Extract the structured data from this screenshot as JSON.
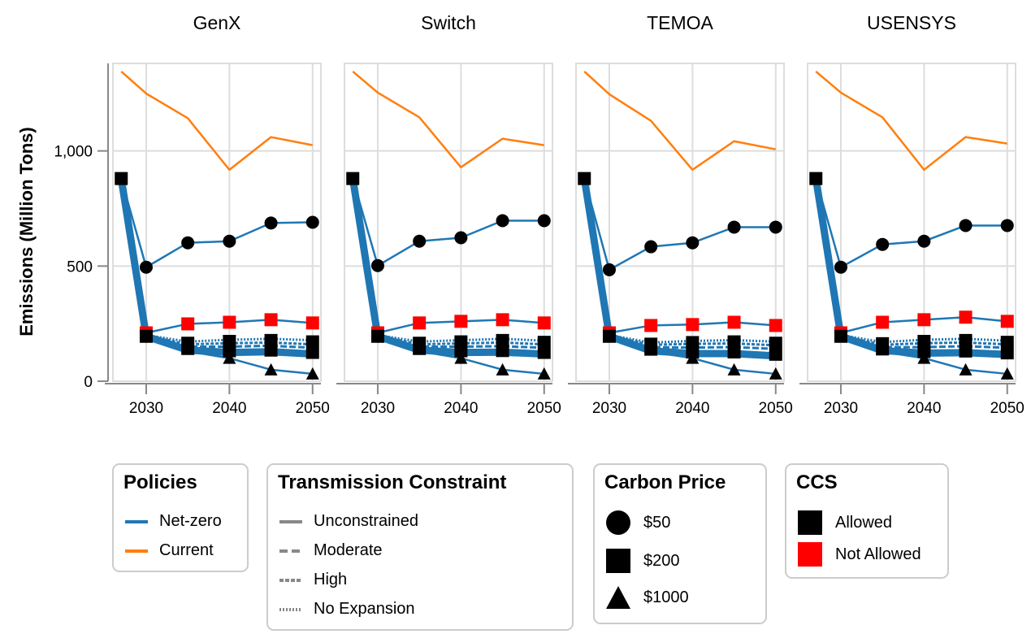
{
  "chart_data": {
    "type": "line",
    "ylabel": "Emissions (Million Tons)",
    "ylim": [
      0,
      1380
    ],
    "yticks": [
      0,
      500,
      1000
    ],
    "ytick_labels": [
      "0",
      "500",
      "1,000"
    ],
    "xlim": [
      2026,
      2051
    ],
    "xticks": [
      2030,
      2040,
      2050
    ],
    "xtick_labels": [
      "2030",
      "2040",
      "2050"
    ],
    "grid": true,
    "x": [
      2027,
      2030,
      2035,
      2040,
      2045,
      2050
    ],
    "panels": [
      {
        "title": "GenX",
        "series": [
          {
            "name": "Current policy",
            "policy": "Current",
            "values": [
              1345,
              1249,
              1142,
              918,
              1060,
              1025
            ]
          },
          {
            "name": "Net-zero $50 CCS allowed",
            "policy": "Net-zero",
            "carbon_price": "$50",
            "ccs": "Allowed",
            "transmission": "Unconstrained",
            "marker": "circle",
            "values": [
              880,
              495,
              601,
              608,
              687,
              690
            ]
          },
          {
            "name": "Net-zero $200 CCS not allowed",
            "policy": "Net-zero",
            "carbon_price": "$200",
            "ccs": "Not Allowed",
            "transmission": "Unconstrained",
            "marker": "square",
            "values": [
              880,
              210,
              249,
              256,
              267,
              253
            ]
          },
          {
            "name": "Net-zero $200 No Expansion",
            "policy": "Net-zero",
            "carbon_price": "$200",
            "ccs": "Allowed",
            "transmission": "No Expansion",
            "marker": "square",
            "values": [
              880,
              200,
              172,
              180,
              184,
              178
            ]
          },
          {
            "name": "Net-zero $200 High",
            "policy": "Net-zero",
            "carbon_price": "$200",
            "ccs": "Allowed",
            "transmission": "High",
            "marker": "square",
            "values": [
              880,
              198,
              160,
              165,
              168,
              160
            ]
          },
          {
            "name": "Net-zero $200 Moderate",
            "policy": "Net-zero",
            "carbon_price": "$200",
            "ccs": "Allowed",
            "transmission": "Moderate",
            "marker": "square",
            "values": [
              880,
              196,
              150,
              150,
              154,
              145
            ]
          },
          {
            "name": "Net-zero $200 Unconstrained",
            "policy": "Net-zero",
            "carbon_price": "$200",
            "ccs": "Allowed",
            "transmission": "Unconstrained",
            "marker": "square",
            "values": [
              880,
              195,
              135,
              125,
              128,
              118
            ]
          },
          {
            "name": "Net-zero $1000",
            "policy": "Net-zero",
            "carbon_price": "$1000",
            "ccs": "Allowed",
            "transmission": "Unconstrained",
            "marker": "triangle",
            "values": [
              880,
              195,
              130,
              100,
              50,
              32
            ]
          }
        ]
      },
      {
        "title": "Switch",
        "series": [
          {
            "name": "Current policy",
            "policy": "Current",
            "values": [
              1345,
              1253,
              1146,
              929,
              1053,
              1025
            ]
          },
          {
            "name": "Net-zero $50 CCS allowed",
            "policy": "Net-zero",
            "carbon_price": "$50",
            "ccs": "Allowed",
            "transmission": "Unconstrained",
            "marker": "circle",
            "values": [
              880,
              502,
              608,
              623,
              697,
              697
            ]
          },
          {
            "name": "Net-zero $200 CCS not allowed",
            "policy": "Net-zero",
            "carbon_price": "$200",
            "ccs": "Not Allowed",
            "transmission": "Unconstrained",
            "marker": "square",
            "values": [
              880,
              210,
              253,
              260,
              267,
              253
            ]
          },
          {
            "name": "Net-zero $200 No Expansion",
            "policy": "Net-zero",
            "carbon_price": "$200",
            "ccs": "Allowed",
            "transmission": "No Expansion",
            "marker": "square",
            "values": [
              880,
              200,
              172,
              178,
              184,
              176
            ]
          },
          {
            "name": "Net-zero $200 High",
            "policy": "Net-zero",
            "carbon_price": "$200",
            "ccs": "Allowed",
            "transmission": "High",
            "marker": "square",
            "values": [
              880,
              198,
              160,
              164,
              168,
              160
            ]
          },
          {
            "name": "Net-zero $200 Moderate",
            "policy": "Net-zero",
            "carbon_price": "$200",
            "ccs": "Allowed",
            "transmission": "Moderate",
            "marker": "square",
            "values": [
              880,
              196,
              150,
              150,
              152,
              145
            ]
          },
          {
            "name": "Net-zero $200 Unconstrained",
            "policy": "Net-zero",
            "carbon_price": "$200",
            "ccs": "Allowed",
            "transmission": "Unconstrained",
            "marker": "square",
            "values": [
              880,
              195,
              135,
              125,
              126,
              118
            ]
          },
          {
            "name": "Net-zero $1000",
            "policy": "Net-zero",
            "carbon_price": "$1000",
            "ccs": "Allowed",
            "transmission": "Unconstrained",
            "marker": "triangle",
            "values": [
              880,
              195,
              130,
              100,
              50,
              32
            ]
          }
        ]
      },
      {
        "title": "TEMOA",
        "series": [
          {
            "name": "Current policy",
            "policy": "Current",
            "values": [
              1345,
              1246,
              1131,
              918,
              1042,
              1007
            ]
          },
          {
            "name": "Net-zero $50 CCS allowed",
            "policy": "Net-zero",
            "carbon_price": "$50",
            "ccs": "Allowed",
            "transmission": "Unconstrained",
            "marker": "circle",
            "values": [
              880,
              484,
              584,
              601,
              669,
              669
            ]
          },
          {
            "name": "Net-zero $200 CCS not allowed",
            "policy": "Net-zero",
            "carbon_price": "$200",
            "ccs": "Not Allowed",
            "transmission": "Unconstrained",
            "marker": "square",
            "values": [
              880,
              210,
              242,
              246,
              256,
              242
            ]
          },
          {
            "name": "Net-zero $200 No Expansion",
            "policy": "Net-zero",
            "carbon_price": "$200",
            "ccs": "Allowed",
            "transmission": "No Expansion",
            "marker": "square",
            "values": [
              880,
              200,
              168,
              175,
              178,
              172
            ]
          },
          {
            "name": "Net-zero $200 High",
            "policy": "Net-zero",
            "carbon_price": "$200",
            "ccs": "Allowed",
            "transmission": "High",
            "marker": "square",
            "values": [
              880,
              198,
              158,
              162,
              164,
              156
            ]
          },
          {
            "name": "Net-zero $200 Moderate",
            "policy": "Net-zero",
            "carbon_price": "$200",
            "ccs": "Allowed",
            "transmission": "Moderate",
            "marker": "square",
            "values": [
              880,
              196,
              148,
              146,
              148,
              140
            ]
          },
          {
            "name": "Net-zero $200 Unconstrained",
            "policy": "Net-zero",
            "carbon_price": "$200",
            "ccs": "Allowed",
            "transmission": "Unconstrained",
            "marker": "square",
            "values": [
              880,
              195,
              132,
              120,
              120,
              110
            ]
          },
          {
            "name": "Net-zero $1000",
            "policy": "Net-zero",
            "carbon_price": "$1000",
            "ccs": "Allowed",
            "transmission": "Unconstrained",
            "marker": "triangle",
            "values": [
              880,
              195,
              128,
              100,
              50,
              32
            ]
          }
        ]
      },
      {
        "title": "USENSYS",
        "series": [
          {
            "name": "Current policy",
            "policy": "Current",
            "values": [
              1345,
              1253,
              1146,
              918,
              1060,
              1032
            ]
          },
          {
            "name": "Net-zero $50 CCS allowed",
            "policy": "Net-zero",
            "carbon_price": "$50",
            "ccs": "Allowed",
            "transmission": "Unconstrained",
            "marker": "circle",
            "values": [
              880,
              495,
              594,
              608,
              676,
              676
            ]
          },
          {
            "name": "Net-zero $200 CCS not allowed",
            "policy": "Net-zero",
            "carbon_price": "$200",
            "ccs": "Not Allowed",
            "transmission": "Unconstrained",
            "marker": "square",
            "values": [
              880,
              210,
              256,
              267,
              278,
              260
            ]
          },
          {
            "name": "Net-zero $200 No Expansion",
            "policy": "Net-zero",
            "carbon_price": "$200",
            "ccs": "Allowed",
            "transmission": "No Expansion",
            "marker": "square",
            "values": [
              880,
              200,
              170,
              180,
              184,
              176
            ]
          },
          {
            "name": "Net-zero $200 High",
            "policy": "Net-zero",
            "carbon_price": "$200",
            "ccs": "Allowed",
            "transmission": "High",
            "marker": "square",
            "values": [
              880,
              198,
              158,
              165,
              168,
              160
            ]
          },
          {
            "name": "Net-zero $200 Moderate",
            "policy": "Net-zero",
            "carbon_price": "$200",
            "ccs": "Allowed",
            "transmission": "Moderate",
            "marker": "square",
            "values": [
              880,
              196,
              148,
              148,
              152,
              145
            ]
          },
          {
            "name": "Net-zero $200 Unconstrained",
            "policy": "Net-zero",
            "carbon_price": "$200",
            "ccs": "Allowed",
            "transmission": "Unconstrained",
            "marker": "square",
            "values": [
              880,
              195,
              133,
              122,
              124,
              116
            ]
          },
          {
            "name": "Net-zero $1000",
            "policy": "Net-zero",
            "carbon_price": "$1000",
            "ccs": "Allowed",
            "transmission": "Unconstrained",
            "marker": "triangle",
            "values": [
              880,
              195,
              128,
              100,
              50,
              32
            ]
          }
        ]
      }
    ],
    "legends": [
      {
        "title": "Policies",
        "items": [
          {
            "label": "Net-zero",
            "color": "#1f77b4",
            "symbol": "line"
          },
          {
            "label": "Current",
            "color": "#ff7f0e",
            "symbol": "line"
          }
        ]
      },
      {
        "title": "Transmission Constraint",
        "items": [
          {
            "label": "Unconstrained",
            "dash": "solid"
          },
          {
            "label": "Moderate",
            "dash": "dashed"
          },
          {
            "label": "High",
            "dash": "short-dash"
          },
          {
            "label": "No Expansion",
            "dash": "dotted"
          }
        ]
      },
      {
        "title": "Carbon Price",
        "items": [
          {
            "label": "$50",
            "symbol": "circle"
          },
          {
            "label": "$200",
            "symbol": "square"
          },
          {
            "label": "$1000",
            "symbol": "triangle"
          }
        ]
      },
      {
        "title": "CCS",
        "items": [
          {
            "label": "Allowed",
            "color": "#000000"
          },
          {
            "label": "Not Allowed",
            "color": "#ff0000"
          }
        ]
      }
    ]
  },
  "colors": {
    "net_zero": "#1f77b4",
    "current": "#ff7f0e",
    "ccs_allowed": "#000000",
    "ccs_not_allowed": "#ff0000",
    "grid": "#dddddd",
    "axis": "#888888",
    "legend_line": "#888888"
  }
}
